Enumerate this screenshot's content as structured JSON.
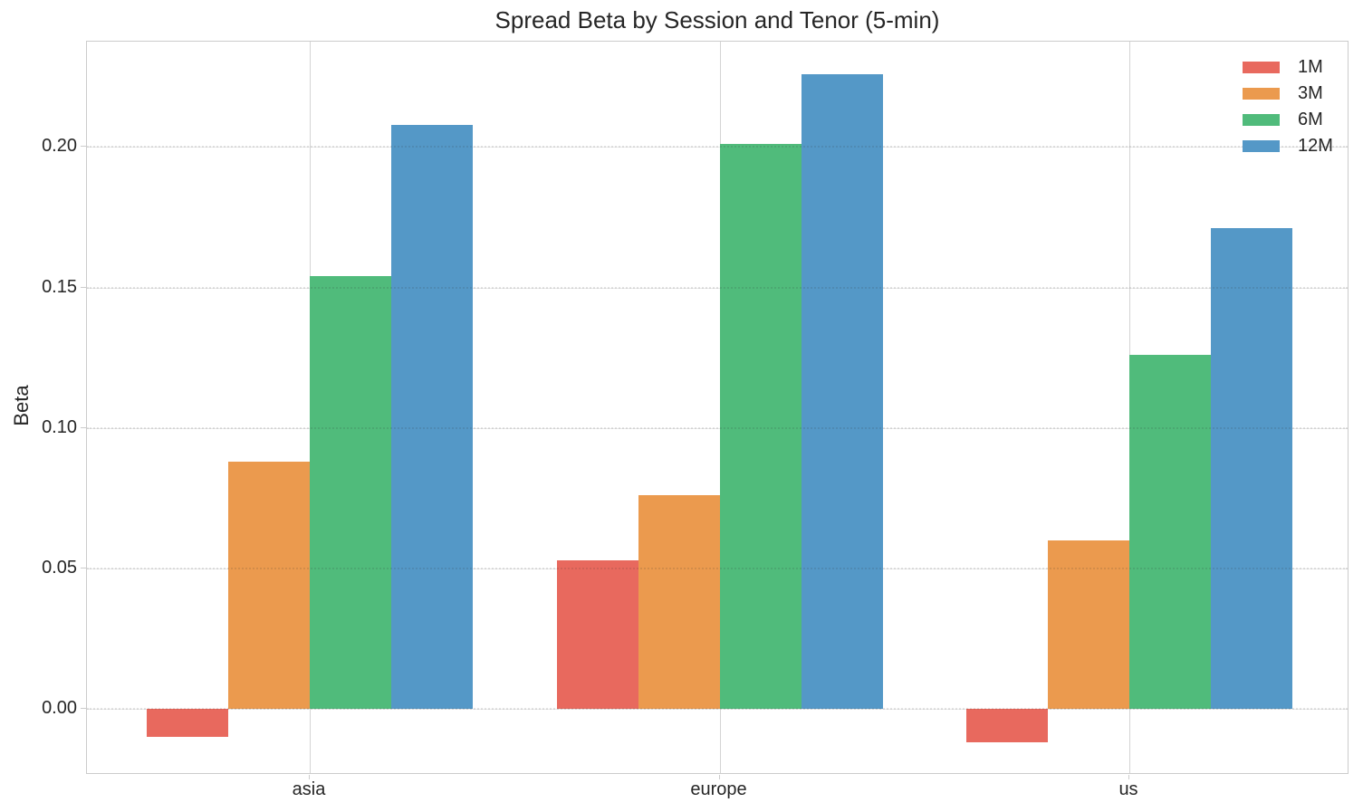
{
  "title": "Spread Beta by Session and Tenor (5-min)",
  "chart_data": {
    "type": "bar",
    "title": "Spread Beta by Session and Tenor (5-min)",
    "categories": [
      "asia",
      "europe",
      "us"
    ],
    "series": [
      {
        "name": "1M",
        "color": "#e8695e",
        "values": [
          -0.01,
          0.053,
          -0.012
        ]
      },
      {
        "name": "3M",
        "color": "#eb9a4e",
        "values": [
          0.088,
          0.076,
          0.06
        ]
      },
      {
        "name": "6M",
        "color": "#50bb7b",
        "values": [
          0.154,
          0.201,
          0.126
        ]
      },
      {
        "name": "12M",
        "color": "#5498c7",
        "values": [
          0.208,
          0.226,
          0.171
        ]
      }
    ],
    "xlabel": "",
    "ylabel": "Beta",
    "ylim": [
      -0.0235,
      0.2375
    ],
    "yticks": [
      0.0,
      0.05,
      0.1,
      0.15,
      0.2
    ],
    "ytick_labels": [
      "0.00",
      "0.05",
      "0.10",
      "0.15",
      "0.20"
    ],
    "grid": true,
    "legend_position": "upper right",
    "legend_frame": false
  },
  "colors": {
    "background": "#ffffff",
    "text": "#262626",
    "spine": "#cccccc",
    "hgrid": "#eaeaea",
    "vgrid": "#d4d4d4"
  }
}
